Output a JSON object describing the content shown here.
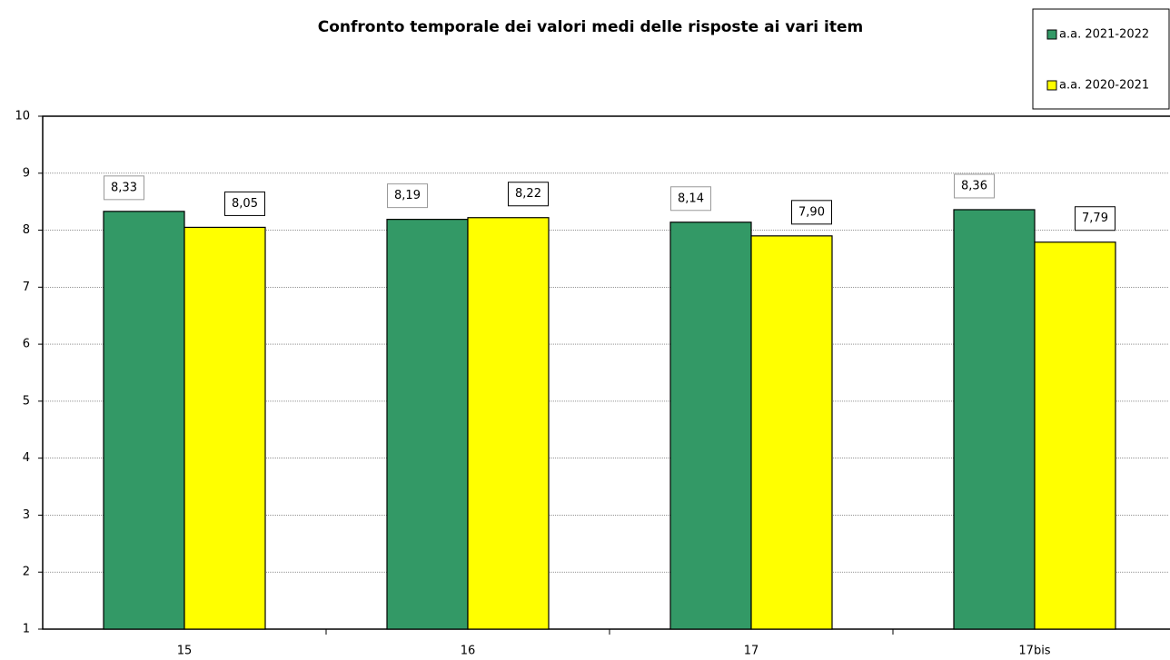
{
  "chart_data": {
    "type": "bar",
    "title": "Confronto temporale dei valori medi delle risposte ai vari item",
    "categories": [
      "15",
      "16",
      "17",
      "17bis"
    ],
    "series": [
      {
        "name": "a.a. 2021-2022",
        "color": "#339966",
        "values": [
          8.33,
          8.19,
          8.14,
          8.36
        ],
        "value_labels": [
          "8,33",
          "8,19",
          "8,14",
          "8,36"
        ]
      },
      {
        "name": "a.a. 2020-2021",
        "color": "#ffff00",
        "values": [
          8.05,
          8.22,
          7.9,
          7.79
        ],
        "value_labels": [
          "8,05",
          "8,22",
          "7,90",
          "7,79"
        ]
      }
    ],
    "ylim": [
      1,
      10
    ],
    "yticks": [
      1,
      2,
      3,
      4,
      5,
      6,
      7,
      8,
      9,
      10
    ],
    "grid": true,
    "legend": "top-right"
  }
}
